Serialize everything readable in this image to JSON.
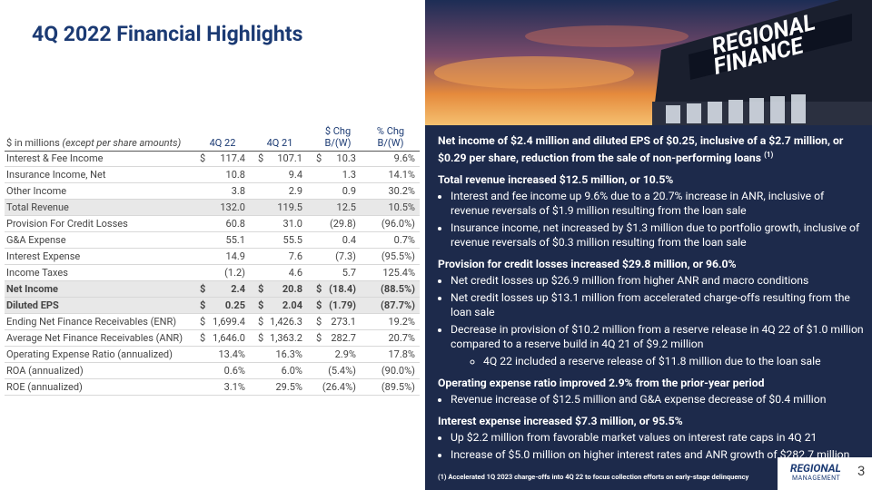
{
  "title": "4Q 2022 Financial Highlights",
  "table": {
    "header": {
      "units": "$ in millions",
      "units_note": "(except per share amounts)",
      "columns": [
        [
          "4Q 22"
        ],
        [
          "4Q 21"
        ],
        [
          "$ Chg",
          "B/(W)"
        ],
        [
          "% Chg",
          "B/(W)"
        ]
      ]
    },
    "rows": [
      {
        "label": "Interest & Fee Income",
        "cells": [
          [
            "$",
            "117.4"
          ],
          [
            "$",
            "107.1"
          ],
          [
            "$",
            "10.3"
          ],
          [
            "9.6%"
          ]
        ]
      },
      {
        "label": "Insurance Income, Net",
        "cells": [
          [
            "10.8"
          ],
          [
            "9.4"
          ],
          [
            "1.3"
          ],
          [
            "14.1%"
          ]
        ]
      },
      {
        "label": "Other Income",
        "cells": [
          [
            "3.8"
          ],
          [
            "2.9"
          ],
          [
            "0.9"
          ],
          [
            "30.2%"
          ]
        ]
      },
      {
        "label": "Total Revenue",
        "cells": [
          [
            "132.0"
          ],
          [
            "119.5"
          ],
          [
            "12.5"
          ],
          [
            "10.5%"
          ]
        ]
      },
      {
        "label": "Provision For Credit Losses",
        "cells": [
          [
            "60.8"
          ],
          [
            "31.0"
          ],
          [
            "(29.8)"
          ],
          [
            "(96.0%)"
          ]
        ]
      },
      {
        "label": "G&A Expense",
        "cells": [
          [
            "55.1"
          ],
          [
            "55.5"
          ],
          [
            "0.4"
          ],
          [
            "0.7%"
          ]
        ]
      },
      {
        "label": "Interest Expense",
        "cells": [
          [
            "14.9"
          ],
          [
            "7.6"
          ],
          [
            "(7.3)"
          ],
          [
            "(95.5%)"
          ]
        ]
      },
      {
        "label": "Income Taxes",
        "cells": [
          [
            "(1.2)"
          ],
          [
            "4.6"
          ],
          [
            "5.7"
          ],
          [
            "125.4%"
          ]
        ]
      },
      {
        "label": "Net Income",
        "cells": [
          [
            "$",
            "2.4"
          ],
          [
            "$",
            "20.8"
          ],
          [
            "$",
            "(18.4)"
          ],
          [
            "(88.5%)"
          ]
        ]
      },
      {
        "label": "Diluted EPS",
        "cells": [
          [
            "$",
            "0.25"
          ],
          [
            "$",
            "2.04"
          ],
          [
            "$",
            "(1.79)"
          ],
          [
            "(87.7%)"
          ]
        ]
      },
      {
        "label": "Ending Net Finance Receivables (ENR)",
        "cells": [
          [
            "$",
            "1,699.4"
          ],
          [
            "$",
            "1,426.3"
          ],
          [
            "$",
            "273.1"
          ],
          [
            "19.2%"
          ]
        ]
      },
      {
        "label": "Average Net Finance Receivables (ANR)",
        "cells": [
          [
            "$",
            "1,646.0"
          ],
          [
            "$",
            "1,363.2"
          ],
          [
            "$",
            "282.7"
          ],
          [
            "20.7%"
          ]
        ]
      },
      {
        "label": "Operating Expense Ratio (annualized)",
        "cells": [
          [
            "13.4%"
          ],
          [
            "16.3%"
          ],
          [
            "2.9%"
          ],
          [
            "17.8%"
          ]
        ]
      },
      {
        "label": "ROA (annualized)",
        "cells": [
          [
            "0.6%"
          ],
          [
            "6.0%"
          ],
          [
            "(5.4%)"
          ],
          [
            "(90.0%)"
          ]
        ]
      },
      {
        "label": "ROE (annualized)",
        "cells": [
          [
            "3.1%"
          ],
          [
            "29.5%"
          ],
          [
            "(26.4%)"
          ],
          [
            "(89.5%)"
          ]
        ]
      }
    ]
  },
  "photo": {
    "sign": [
      "REGIONAL",
      "FINANCE"
    ]
  },
  "panel": {
    "sections": [
      {
        "heading": "Net income of $2.4 million and diluted EPS of $0.25, inclusive of a $2.7 million, or $0.29 per share, reduction from the sale of non-performing loans",
        "note": "(1)",
        "bullets": []
      },
      {
        "heading": "Total revenue increased $12.5 million, or 10.5%",
        "bullets": [
          {
            "text": "Interest and fee income up 9.6% due to a 20.7% increase in ANR, inclusive of revenue reversals of $1.9 million resulting from the loan sale"
          },
          {
            "text": "Insurance income, net increased by $1.3 million due to portfolio growth, inclusive of revenue reversals of $0.3 million resulting from the loan sale"
          }
        ]
      },
      {
        "heading": "Provision for credit losses increased $29.8 million, or 96.0%",
        "bullets": [
          {
            "text": "Net credit losses up $26.9 million from higher ANR and macro conditions"
          },
          {
            "text": "Net credit losses up $13.1 million from accelerated charge-offs resulting from the loan sale"
          },
          {
            "text": "Decrease in provision of $10.2 million from a reserve release in 4Q 22 of $1.0 million compared to a reserve build in 4Q 21 of $9.2 million",
            "bullets": [
              "4Q 22 included a reserve release of $11.8 million due to the loan sale"
            ]
          }
        ]
      },
      {
        "heading": "Operating expense ratio improved 2.9% from the prior-year period",
        "bullets": [
          {
            "text": "Revenue increase of $12.5 million and G&A expense decrease of $0.4 million"
          }
        ]
      },
      {
        "heading": "Interest expense increased $7.3 million, or 95.5%",
        "bullets": [
          {
            "text": "Up $2.2 million from favorable market values on interest rate caps in 4Q 21"
          },
          {
            "text": "Increase of $5.0 million on higher interest rates and ANR growth of $282.7 million"
          }
        ]
      }
    ],
    "footnote": "(1) Accelerated 1Q 2023 charge-offs into 4Q 22 to focus collection efforts on early-stage delinquency"
  },
  "logo": [
    "REGIONAL",
    "MANAGEMENT"
  ],
  "page_number": "3"
}
